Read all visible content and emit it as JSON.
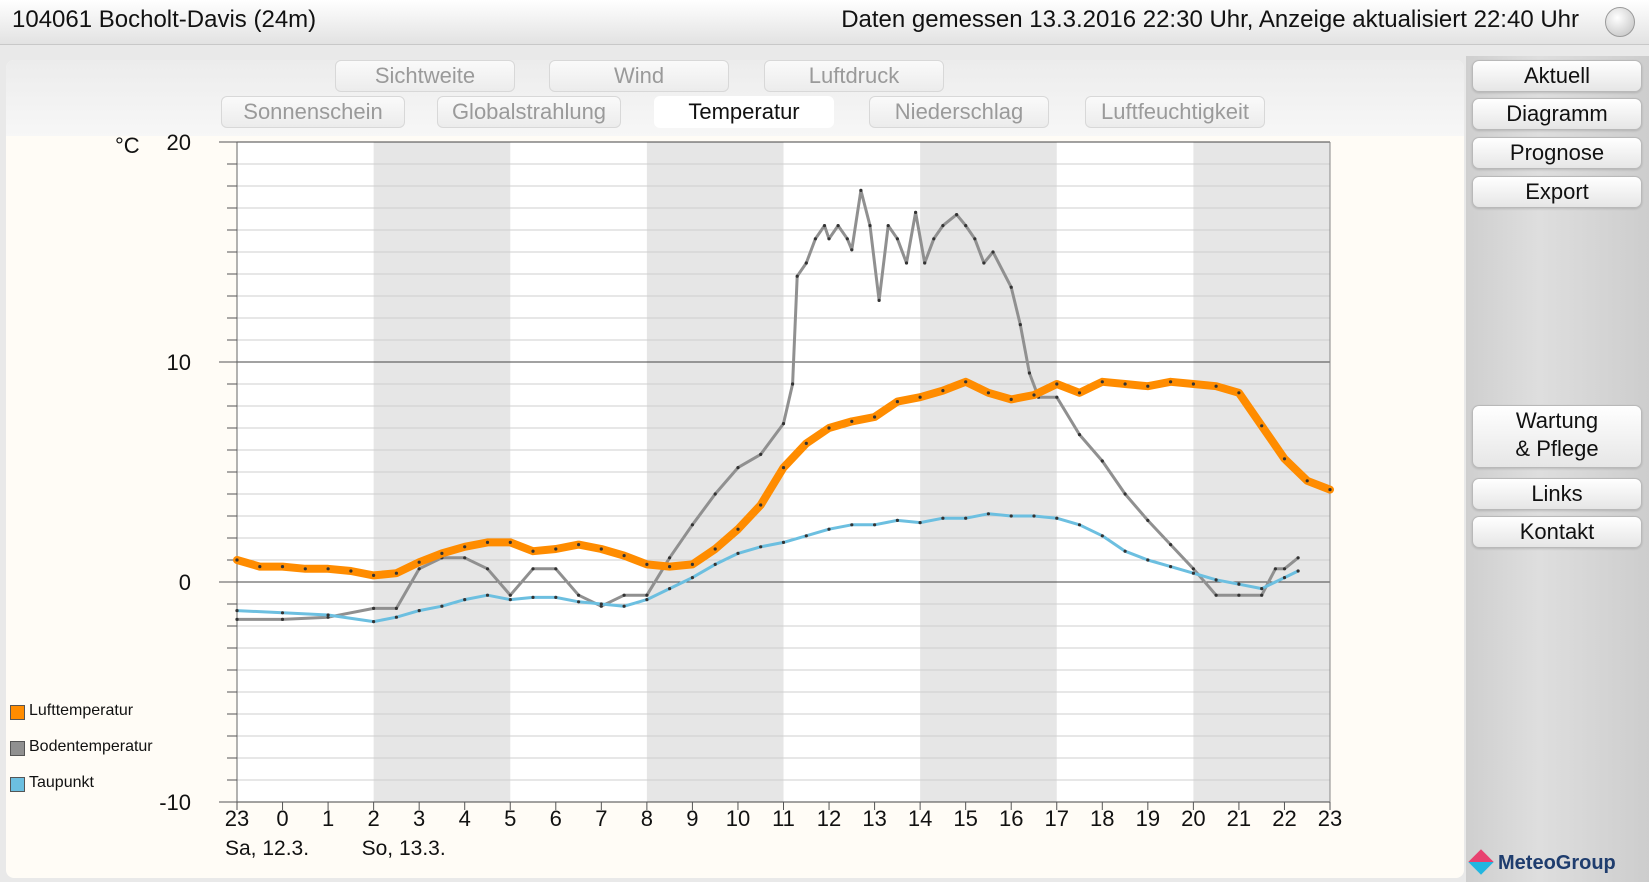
{
  "header": {
    "station": "104061 Bocholt-Davis (24m)",
    "measured": "Daten gemessen 13.3.2016 22:30 Uhr, Anzeige aktualisiert 22:40 Uhr"
  },
  "tabs": {
    "row1": [
      "Sichtweite",
      "Wind",
      "Luftdruck"
    ],
    "row2": [
      "Sonnenschein",
      "Globalstrahlung",
      "Temperatur",
      "Niederschlag",
      "Luftfeuchtigkeit"
    ],
    "active": "Temperatur"
  },
  "sidebar": {
    "aktuell": "Aktuell",
    "diagramm": "Diagramm",
    "prognose": "Prognose",
    "export": "Export",
    "wartung_line1": "Wartung",
    "wartung_line2": "& Pflege",
    "links": "Links",
    "kontakt": "Kontakt"
  },
  "logo": "MeteoGroup",
  "chart_data": {
    "type": "line",
    "ylabel": "°C",
    "ylim": [
      -10,
      20
    ],
    "yticks": [
      -10,
      0,
      10,
      20
    ],
    "xlim": [
      0,
      24
    ],
    "xticks": [
      "23",
      "0",
      "1",
      "2",
      "3",
      "4",
      "5",
      "6",
      "7",
      "8",
      "9",
      "10",
      "11",
      "12",
      "13",
      "14",
      "15",
      "16",
      "17",
      "18",
      "19",
      "20",
      "21",
      "22",
      "23"
    ],
    "date_labels": [
      {
        "x": 0,
        "label": "Sa, 12.3."
      },
      {
        "x": 3,
        "label": "So, 13.3."
      }
    ],
    "night_bands": [
      [
        3,
        6
      ],
      [
        9,
        12
      ],
      [
        15,
        18
      ],
      [
        21,
        24
      ]
    ],
    "grid": true,
    "legend_position": "bottom-left",
    "series": [
      {
        "name": "Lufttemperatur",
        "color": "#ff8c00",
        "points": [
          [
            0,
            1.0
          ],
          [
            0.5,
            0.7
          ],
          [
            1,
            0.7
          ],
          [
            1.5,
            0.6
          ],
          [
            2,
            0.6
          ],
          [
            2.5,
            0.5
          ],
          [
            3,
            0.3
          ],
          [
            3.5,
            0.4
          ],
          [
            4,
            0.9
          ],
          [
            4.5,
            1.3
          ],
          [
            5,
            1.6
          ],
          [
            5.5,
            1.8
          ],
          [
            6,
            1.8
          ],
          [
            6.5,
            1.4
          ],
          [
            7,
            1.5
          ],
          [
            7.5,
            1.7
          ],
          [
            8,
            1.5
          ],
          [
            8.5,
            1.2
          ],
          [
            9,
            0.8
          ],
          [
            9.5,
            0.7
          ],
          [
            10,
            0.8
          ],
          [
            10.5,
            1.5
          ],
          [
            11,
            2.4
          ],
          [
            11.5,
            3.5
          ],
          [
            12,
            5.2
          ],
          [
            12.5,
            6.3
          ],
          [
            13,
            7.0
          ],
          [
            13.5,
            7.3
          ],
          [
            14,
            7.5
          ],
          [
            14.5,
            8.2
          ],
          [
            15,
            8.4
          ],
          [
            15.5,
            8.7
          ],
          [
            16,
            9.1
          ],
          [
            16.5,
            8.6
          ],
          [
            17,
            8.3
          ],
          [
            17.5,
            8.5
          ],
          [
            18,
            9.0
          ],
          [
            18.5,
            8.6
          ],
          [
            19,
            9.1
          ],
          [
            19.5,
            9.0
          ],
          [
            20,
            8.9
          ],
          [
            20.5,
            9.1
          ],
          [
            21,
            9.0
          ],
          [
            21.5,
            8.9
          ],
          [
            22,
            8.6
          ],
          [
            22.5,
            7.1
          ],
          [
            23,
            5.6
          ],
          [
            23.5,
            4.6
          ],
          [
            24,
            4.2
          ]
        ]
      },
      {
        "name": "Bodentemperatur",
        "color": "#909090",
        "points": [
          [
            0,
            -1.7
          ],
          [
            1,
            -1.7
          ],
          [
            2,
            -1.6
          ],
          [
            3,
            -1.2
          ],
          [
            3.5,
            -1.2
          ],
          [
            4,
            0.6
          ],
          [
            4.5,
            1.1
          ],
          [
            5,
            1.1
          ],
          [
            5.5,
            0.6
          ],
          [
            6,
            -0.6
          ],
          [
            6.5,
            0.6
          ],
          [
            7,
            0.6
          ],
          [
            7.5,
            -0.6
          ],
          [
            8,
            -1.1
          ],
          [
            8.5,
            -0.6
          ],
          [
            9,
            -0.6
          ],
          [
            9.5,
            1.1
          ],
          [
            10,
            2.6
          ],
          [
            10.5,
            4.0
          ],
          [
            11,
            5.2
          ],
          [
            11.5,
            5.8
          ],
          [
            12,
            7.2
          ],
          [
            12.2,
            9.0
          ],
          [
            12.3,
            13.9
          ],
          [
            12.5,
            14.5
          ],
          [
            12.7,
            15.6
          ],
          [
            12.9,
            16.2
          ],
          [
            13,
            15.6
          ],
          [
            13.2,
            16.2
          ],
          [
            13.4,
            15.6
          ],
          [
            13.5,
            15.1
          ],
          [
            13.7,
            17.8
          ],
          [
            13.9,
            16.2
          ],
          [
            14.1,
            12.8
          ],
          [
            14.3,
            16.2
          ],
          [
            14.5,
            15.6
          ],
          [
            14.7,
            14.5
          ],
          [
            14.9,
            16.8
          ],
          [
            15.1,
            14.5
          ],
          [
            15.3,
            15.6
          ],
          [
            15.5,
            16.2
          ],
          [
            15.8,
            16.7
          ],
          [
            16,
            16.2
          ],
          [
            16.2,
            15.6
          ],
          [
            16.4,
            14.5
          ],
          [
            16.6,
            15.0
          ],
          [
            17,
            13.4
          ],
          [
            17.2,
            11.7
          ],
          [
            17.4,
            9.5
          ],
          [
            17.6,
            8.4
          ],
          [
            18,
            8.4
          ],
          [
            18.5,
            6.7
          ],
          [
            19,
            5.5
          ],
          [
            19.5,
            4.0
          ],
          [
            20,
            2.8
          ],
          [
            20.5,
            1.7
          ],
          [
            21,
            0.6
          ],
          [
            21.5,
            -0.6
          ],
          [
            22,
            -0.6
          ],
          [
            22.5,
            -0.6
          ],
          [
            22.8,
            0.6
          ],
          [
            23,
            0.6
          ],
          [
            23.3,
            1.1
          ]
        ]
      },
      {
        "name": "Taupunkt",
        "color": "#6cbfe0",
        "points": [
          [
            0,
            -1.3
          ],
          [
            1,
            -1.4
          ],
          [
            2,
            -1.5
          ],
          [
            3,
            -1.8
          ],
          [
            3.5,
            -1.6
          ],
          [
            4,
            -1.3
          ],
          [
            4.5,
            -1.1
          ],
          [
            5,
            -0.8
          ],
          [
            5.5,
            -0.6
          ],
          [
            6,
            -0.8
          ],
          [
            6.5,
            -0.7
          ],
          [
            7,
            -0.7
          ],
          [
            7.5,
            -0.9
          ],
          [
            8,
            -1.0
          ],
          [
            8.5,
            -1.1
          ],
          [
            9,
            -0.8
          ],
          [
            9.5,
            -0.3
          ],
          [
            10,
            0.2
          ],
          [
            10.5,
            0.8
          ],
          [
            11,
            1.3
          ],
          [
            11.5,
            1.6
          ],
          [
            12,
            1.8
          ],
          [
            12.5,
            2.1
          ],
          [
            13,
            2.4
          ],
          [
            13.5,
            2.6
          ],
          [
            14,
            2.6
          ],
          [
            14.5,
            2.8
          ],
          [
            15,
            2.7
          ],
          [
            15.5,
            2.9
          ],
          [
            16,
            2.9
          ],
          [
            16.5,
            3.1
          ],
          [
            17,
            3.0
          ],
          [
            17.5,
            3.0
          ],
          [
            18,
            2.9
          ],
          [
            18.5,
            2.6
          ],
          [
            19,
            2.1
          ],
          [
            19.5,
            1.4
          ],
          [
            20,
            1.0
          ],
          [
            20.5,
            0.7
          ],
          [
            21,
            0.4
          ],
          [
            21.5,
            0.1
          ],
          [
            22,
            -0.1
          ],
          [
            22.5,
            -0.3
          ],
          [
            23,
            0.2
          ],
          [
            23.3,
            0.5
          ]
        ]
      }
    ]
  }
}
